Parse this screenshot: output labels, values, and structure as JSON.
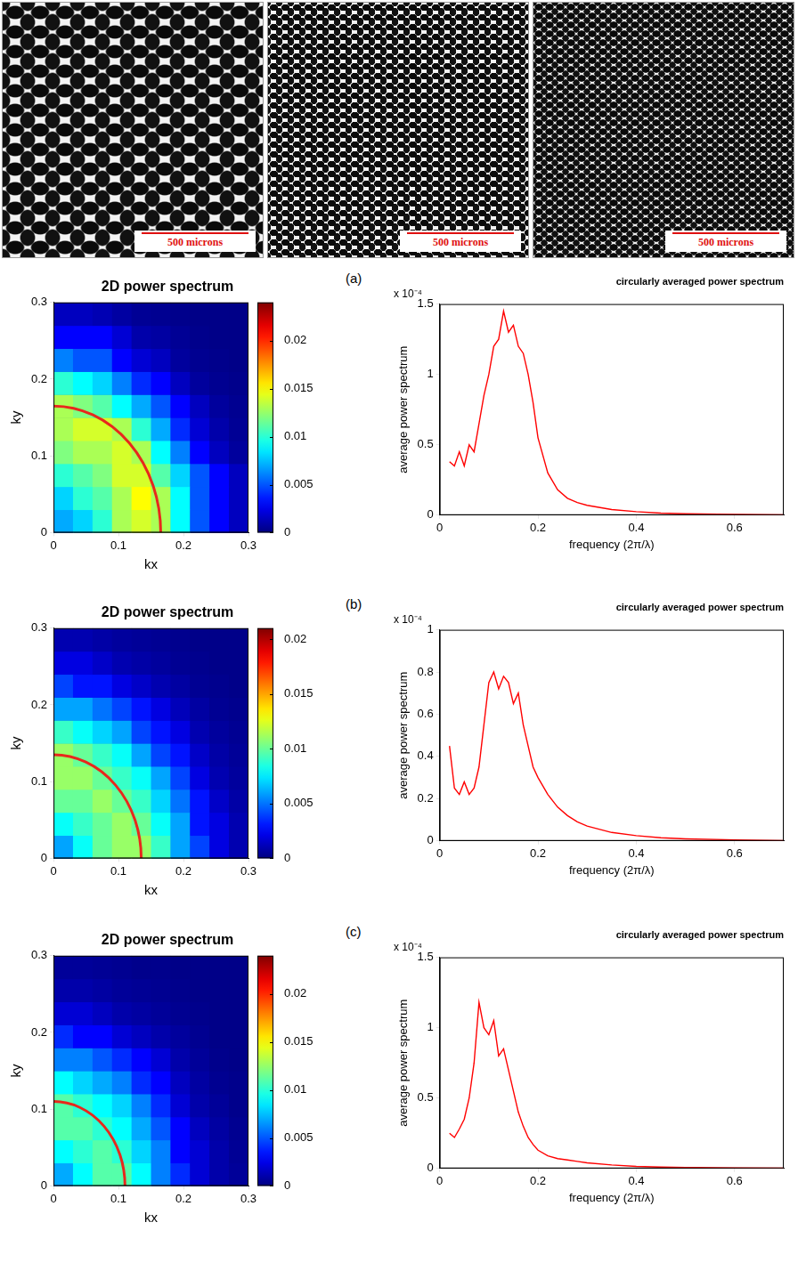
{
  "images": [
    {
      "scale_bar": "500 microns"
    },
    {
      "scale_bar": "500 microns"
    },
    {
      "scale_bar": "500 microns"
    }
  ],
  "chart_data": [
    {
      "type": "heatmap",
      "panel_label": "(a)",
      "title": "2D power spectrum",
      "x_label": "kx",
      "y_label": "ky",
      "xlim": [
        0,
        0.3
      ],
      "ylim": [
        0,
        0.3
      ],
      "xticks": [
        0,
        0.1,
        0.2,
        0.3
      ],
      "yticks": [
        0,
        0.1,
        0.2,
        0.3
      ],
      "colorbar_range": [
        0,
        0.024
      ],
      "colorbar_ticks": [
        0,
        0.005,
        0.01,
        0.015,
        0.02
      ],
      "ring_radius": 0.165,
      "color": "#e8281c",
      "cells": [
        [
          0.007,
          0.008,
          0.01,
          0.013,
          0.014,
          0.013,
          0.009,
          0.005,
          0.003,
          0.0015
        ],
        [
          0.008,
          0.01,
          0.011,
          0.013,
          0.015,
          0.013,
          0.009,
          0.005,
          0.003,
          0.0015
        ],
        [
          0.01,
          0.011,
          0.012,
          0.014,
          0.014,
          0.011,
          0.008,
          0.005,
          0.003,
          0.0015
        ],
        [
          0.012,
          0.013,
          0.013,
          0.014,
          0.013,
          0.009,
          0.006,
          0.003,
          0.0015,
          0.0007
        ],
        [
          0.013,
          0.014,
          0.014,
          0.013,
          0.01,
          0.007,
          0.004,
          0.002,
          0.001,
          0.0005
        ],
        [
          0.013,
          0.012,
          0.011,
          0.009,
          0.007,
          0.005,
          0.003,
          0.0015,
          0.0007,
          0.0004
        ],
        [
          0.01,
          0.009,
          0.008,
          0.006,
          0.004,
          0.003,
          0.0015,
          0.0007,
          0.0004,
          0.0003
        ],
        [
          0.006,
          0.005,
          0.005,
          0.003,
          0.002,
          0.0015,
          0.0007,
          0.0004,
          0.0003,
          0.0002
        ],
        [
          0.003,
          0.003,
          0.003,
          0.002,
          0.001,
          0.0008,
          0.0005,
          0.0003,
          0.0002,
          0.0002
        ],
        [
          0.0015,
          0.0015,
          0.0012,
          0.0008,
          0.0005,
          0.0004,
          0.0003,
          0.0002,
          0.0002,
          0.0002
        ]
      ]
    },
    {
      "type": "line",
      "title": "circularly averaged power spectrum",
      "y_multiplier": "x 10⁻⁴",
      "x_label": "frequency (2π/λ)",
      "y_label": "average power spectrum",
      "xlim": [
        0,
        0.7
      ],
      "ylim": [
        0,
        1.5
      ],
      "xticks": [
        0,
        0.2,
        0.4,
        0.6
      ],
      "yticks": [
        0,
        0.5,
        1,
        1.5
      ],
      "color": "#ff0000",
      "x": [
        0.02,
        0.03,
        0.04,
        0.05,
        0.06,
        0.07,
        0.08,
        0.09,
        0.1,
        0.11,
        0.12,
        0.13,
        0.14,
        0.15,
        0.16,
        0.17,
        0.18,
        0.19,
        0.2,
        0.22,
        0.24,
        0.26,
        0.28,
        0.3,
        0.35,
        0.4,
        0.45,
        0.5,
        0.6,
        0.7
      ],
      "values": [
        0.38,
        0.35,
        0.45,
        0.35,
        0.5,
        0.45,
        0.65,
        0.85,
        1.0,
        1.2,
        1.25,
        1.45,
        1.3,
        1.35,
        1.2,
        1.15,
        1.0,
        0.8,
        0.55,
        0.3,
        0.18,
        0.12,
        0.09,
        0.07,
        0.04,
        0.025,
        0.015,
        0.01,
        0.005,
        0.002
      ]
    },
    {
      "type": "heatmap",
      "panel_label": "(b)",
      "title": "2D power spectrum",
      "x_label": "kx",
      "y_label": "ky",
      "xlim": [
        0,
        0.3
      ],
      "ylim": [
        0,
        0.3
      ],
      "xticks": [
        0,
        0.1,
        0.2,
        0.3
      ],
      "yticks": [
        0,
        0.1,
        0.2,
        0.3
      ],
      "colorbar_range": [
        0,
        0.021
      ],
      "colorbar_ticks": [
        0,
        0.005,
        0.01,
        0.015,
        0.02
      ],
      "ring_radius": 0.135,
      "color": "#e8281c",
      "cells": [
        [
          0.006,
          0.008,
          0.01,
          0.011,
          0.011,
          0.009,
          0.006,
          0.004,
          0.002,
          0.001
        ],
        [
          0.008,
          0.009,
          0.01,
          0.011,
          0.01,
          0.008,
          0.006,
          0.003,
          0.002,
          0.001
        ],
        [
          0.01,
          0.01,
          0.011,
          0.01,
          0.009,
          0.007,
          0.005,
          0.003,
          0.0015,
          0.0008
        ],
        [
          0.011,
          0.011,
          0.01,
          0.009,
          0.008,
          0.006,
          0.004,
          0.002,
          0.001,
          0.0006
        ],
        [
          0.011,
          0.01,
          0.009,
          0.008,
          0.006,
          0.004,
          0.003,
          0.0015,
          0.0008,
          0.0005
        ],
        [
          0.009,
          0.008,
          0.007,
          0.006,
          0.004,
          0.003,
          0.002,
          0.001,
          0.0006,
          0.0004
        ],
        [
          0.006,
          0.006,
          0.005,
          0.004,
          0.003,
          0.002,
          0.0012,
          0.0007,
          0.0004,
          0.0003
        ],
        [
          0.004,
          0.003,
          0.003,
          0.002,
          0.0015,
          0.001,
          0.0007,
          0.0004,
          0.0003,
          0.0002
        ],
        [
          0.002,
          0.002,
          0.0015,
          0.001,
          0.0008,
          0.0006,
          0.0004,
          0.0003,
          0.0002,
          0.0002
        ],
        [
          0.001,
          0.001,
          0.0008,
          0.0006,
          0.0005,
          0.0004,
          0.0003,
          0.0002,
          0.0002,
          0.0002
        ]
      ]
    },
    {
      "type": "line",
      "title": "circularly averaged power spectrum",
      "y_multiplier": "x 10⁻⁴",
      "x_label": "frequency (2π/λ)",
      "y_label": "average power spectrum",
      "xlim": [
        0,
        0.7
      ],
      "ylim": [
        0,
        1
      ],
      "xticks": [
        0,
        0.2,
        0.4,
        0.6
      ],
      "yticks": [
        0,
        0.2,
        0.4,
        0.6,
        0.8,
        1
      ],
      "color": "#ff0000",
      "x": [
        0.02,
        0.03,
        0.04,
        0.05,
        0.06,
        0.07,
        0.08,
        0.09,
        0.1,
        0.11,
        0.12,
        0.13,
        0.14,
        0.15,
        0.16,
        0.17,
        0.18,
        0.19,
        0.2,
        0.22,
        0.24,
        0.26,
        0.28,
        0.3,
        0.35,
        0.4,
        0.45,
        0.5,
        0.6,
        0.7
      ],
      "values": [
        0.45,
        0.25,
        0.22,
        0.28,
        0.22,
        0.25,
        0.35,
        0.55,
        0.75,
        0.8,
        0.72,
        0.78,
        0.75,
        0.65,
        0.7,
        0.55,
        0.45,
        0.35,
        0.3,
        0.22,
        0.16,
        0.12,
        0.09,
        0.07,
        0.04,
        0.025,
        0.015,
        0.01,
        0.005,
        0.002
      ]
    },
    {
      "type": "heatmap",
      "panel_label": "(c)",
      "title": "2D power spectrum",
      "x_label": "kx",
      "y_label": "ky",
      "xlim": [
        0,
        0.3
      ],
      "ylim": [
        0,
        0.3
      ],
      "xticks": [
        0,
        0.1,
        0.2,
        0.3
      ],
      "yticks": [
        0,
        0.1,
        0.2,
        0.3
      ],
      "colorbar_range": [
        0,
        0.024
      ],
      "colorbar_ticks": [
        0,
        0.005,
        0.01,
        0.015,
        0.02
      ],
      "ring_radius": 0.11,
      "color": "#e8281c",
      "cells": [
        [
          0.007,
          0.009,
          0.011,
          0.011,
          0.009,
          0.006,
          0.004,
          0.002,
          0.001,
          0.0006
        ],
        [
          0.009,
          0.01,
          0.011,
          0.01,
          0.008,
          0.006,
          0.003,
          0.002,
          0.001,
          0.0005
        ],
        [
          0.011,
          0.011,
          0.01,
          0.009,
          0.007,
          0.005,
          0.003,
          0.0015,
          0.0008,
          0.0004
        ],
        [
          0.011,
          0.01,
          0.009,
          0.008,
          0.006,
          0.004,
          0.002,
          0.001,
          0.0006,
          0.0003
        ],
        [
          0.009,
          0.008,
          0.007,
          0.006,
          0.004,
          0.003,
          0.0015,
          0.0008,
          0.0004,
          0.0003
        ],
        [
          0.006,
          0.006,
          0.005,
          0.004,
          0.003,
          0.002,
          0.001,
          0.0006,
          0.0003,
          0.0002
        ],
        [
          0.004,
          0.003,
          0.003,
          0.002,
          0.0015,
          0.001,
          0.0007,
          0.0004,
          0.0002,
          0.0002
        ],
        [
          0.002,
          0.002,
          0.0015,
          0.001,
          0.0008,
          0.0006,
          0.0004,
          0.0003,
          0.0002,
          0.0002
        ],
        [
          0.001,
          0.001,
          0.0008,
          0.0006,
          0.0005,
          0.0004,
          0.0003,
          0.0002,
          0.0002,
          0.0002
        ],
        [
          0.0006,
          0.0006,
          0.0005,
          0.0004,
          0.0003,
          0.0003,
          0.0002,
          0.0002,
          0.0002,
          0.0002
        ]
      ]
    },
    {
      "type": "line",
      "title": "circularly averaged power spectrum",
      "y_multiplier": "x 10⁻⁴",
      "x_label": "frequency (2π/λ)",
      "y_label": "average power spectrum",
      "xlim": [
        0,
        0.7
      ],
      "ylim": [
        0,
        1.5
      ],
      "xticks": [
        0,
        0.2,
        0.4,
        0.6
      ],
      "yticks": [
        0,
        0.5,
        1,
        1.5
      ],
      "color": "#ff0000",
      "x": [
        0.02,
        0.03,
        0.04,
        0.05,
        0.06,
        0.07,
        0.08,
        0.09,
        0.1,
        0.11,
        0.12,
        0.13,
        0.14,
        0.15,
        0.16,
        0.17,
        0.18,
        0.19,
        0.2,
        0.22,
        0.24,
        0.26,
        0.28,
        0.3,
        0.35,
        0.4,
        0.45,
        0.5,
        0.6,
        0.7
      ],
      "values": [
        0.25,
        0.22,
        0.28,
        0.35,
        0.5,
        0.75,
        1.18,
        1.0,
        0.95,
        1.05,
        0.8,
        0.85,
        0.7,
        0.55,
        0.4,
        0.3,
        0.22,
        0.17,
        0.13,
        0.09,
        0.07,
        0.06,
        0.05,
        0.04,
        0.025,
        0.015,
        0.01,
        0.007,
        0.004,
        0.002
      ]
    }
  ]
}
